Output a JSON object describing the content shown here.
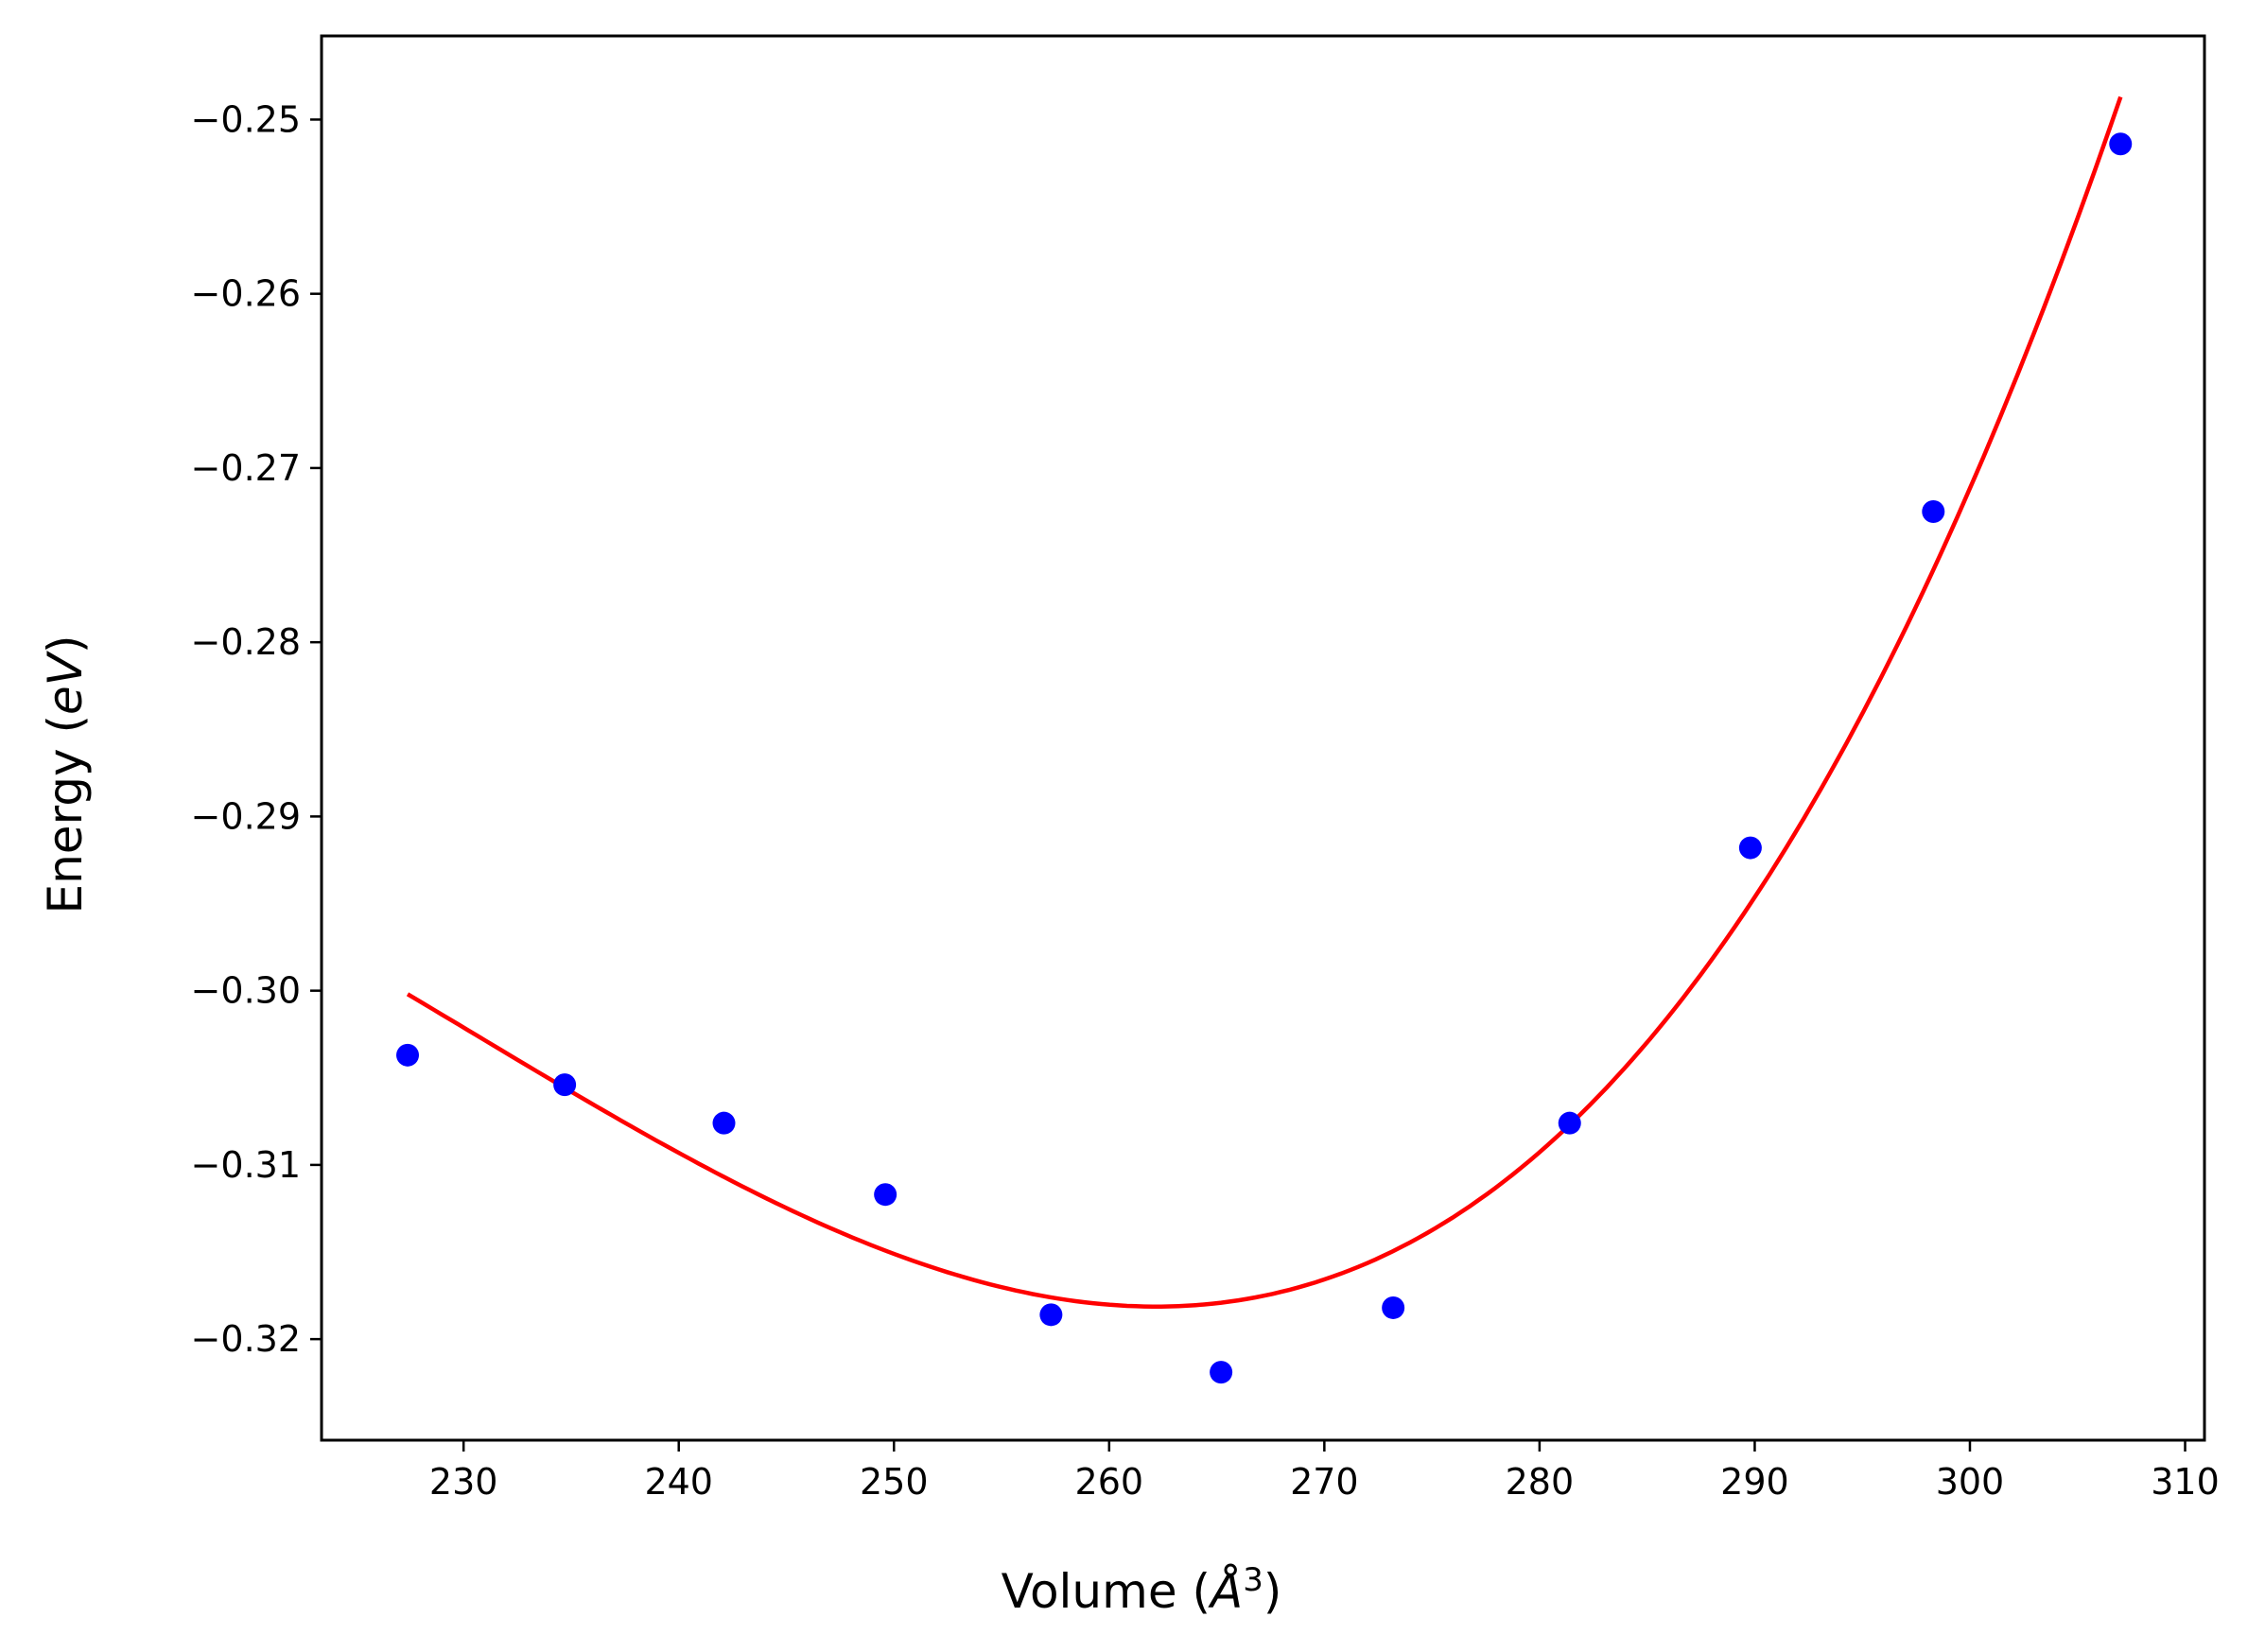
{
  "chart_data": {
    "type": "scatter",
    "title": "",
    "xlabel_prefix": "Volume (",
    "xlabel_sym": "Å",
    "xlabel_exp": "3",
    "xlabel_suffix": ")",
    "ylabel_prefix": "Energy (",
    "ylabel_unit": "eV",
    "ylabel_suffix": ")",
    "xlim": [
      223.4,
      310.9
    ],
    "ylim": [
      -0.3258,
      -0.2452
    ],
    "x_ticks": [
      230,
      240,
      250,
      260,
      270,
      280,
      290,
      300,
      310
    ],
    "y_ticks": [
      -0.25,
      -0.26,
      -0.27,
      -0.28,
      -0.29,
      -0.3,
      -0.31,
      -0.32
    ],
    "y_tick_labels": [
      "−0.25",
      "−0.26",
      "−0.27",
      "−0.28",
      "−0.29",
      "−0.30",
      "−0.31",
      "−0.32"
    ],
    "grid": false,
    "series": [
      {
        "kind": "scatter",
        "color": "#0000ff",
        "points": [
          [
            227.4,
            -0.3037
          ],
          [
            234.7,
            -0.3054
          ],
          [
            242.1,
            -0.3076
          ],
          [
            249.6,
            -0.3117
          ],
          [
            257.3,
            -0.3186
          ],
          [
            265.2,
            -0.3219
          ],
          [
            273.2,
            -0.3182
          ],
          [
            281.4,
            -0.3076
          ],
          [
            289.8,
            -0.2918
          ],
          [
            298.3,
            -0.2725
          ],
          [
            307.0,
            -0.2514
          ]
        ]
      },
      {
        "kind": "line",
        "color": "#ff0000",
        "fit": "cubic",
        "x_range": [
          227.4,
          307.0
        ],
        "fit_points": [
          [
            227.4,
            -0.3002
          ],
          [
            261.0,
            -0.3181
          ],
          [
            281.4,
            -0.3077
          ],
          [
            307.0,
            -0.2487
          ]
        ]
      }
    ]
  }
}
